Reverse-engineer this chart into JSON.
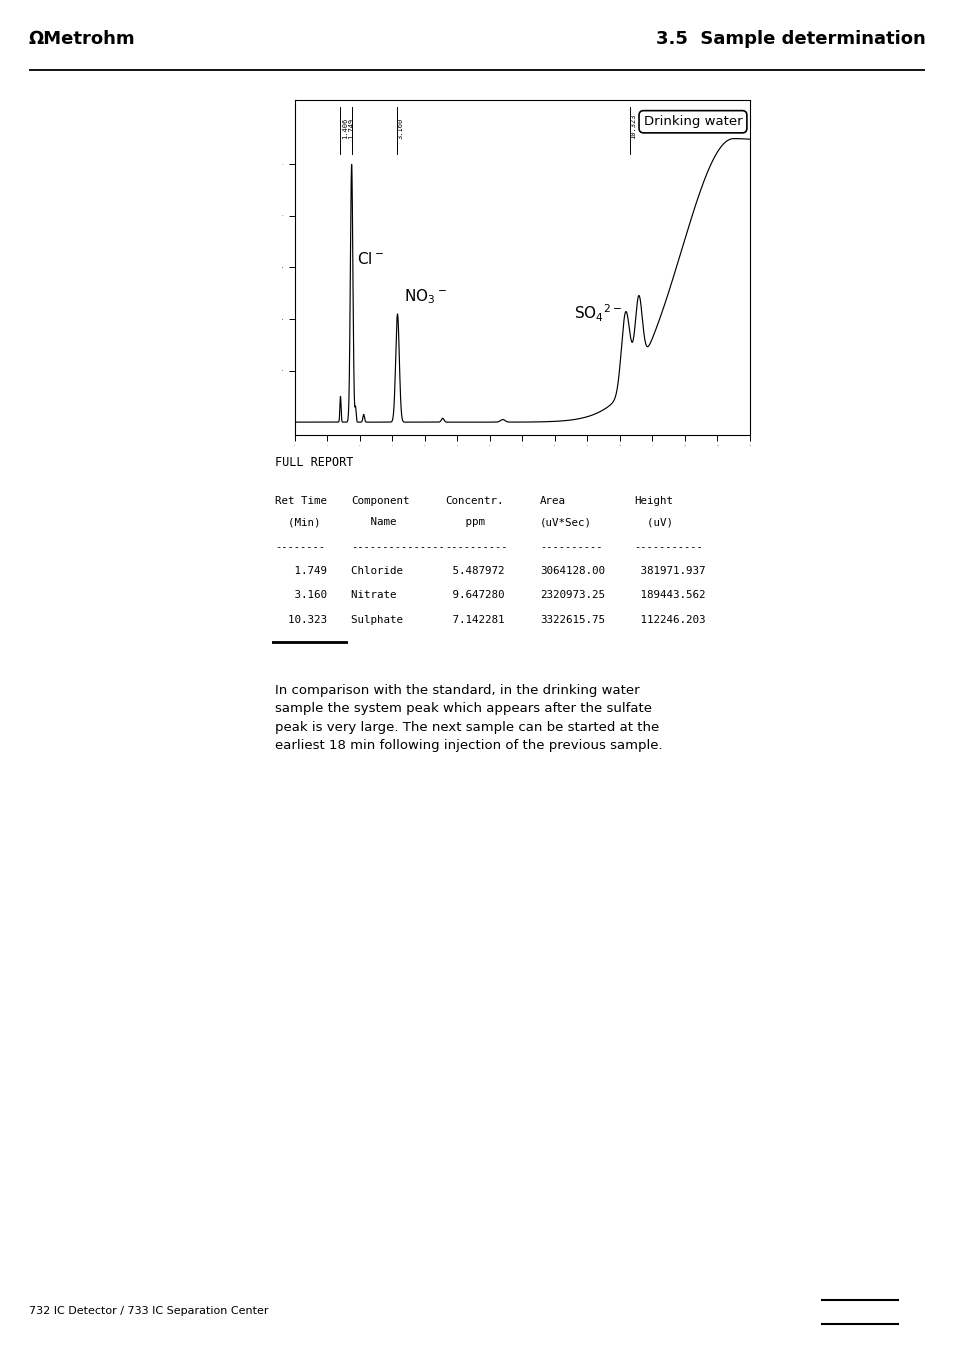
{
  "page_title_left": "ΩMetrohm",
  "page_title_right": "3.5  Sample determination",
  "footer_text": "732 IC Detector / 733 IC Separation Center",
  "chromatogram_label": "Drinking water",
  "full_report_title": "FULL REPORT",
  "table_rows": [
    [
      "1.749",
      "Chloride",
      "5.487972",
      "3064128.00",
      "381971.937"
    ],
    [
      "3.160",
      "Nitrate",
      "9.647280",
      "2320973.25",
      "189443.562"
    ],
    [
      "10.323",
      "Sulphate",
      "7.142281",
      "3322615.75",
      "112246.203"
    ]
  ],
  "paragraph_text": "In comparison with the standard, in the drinking water\nsample the system peak which appears after the sulfate\npeak is very large. The next sample can be started at the\nearliest 18 min following injection of the previous sample.",
  "bg_color": "#ffffff"
}
